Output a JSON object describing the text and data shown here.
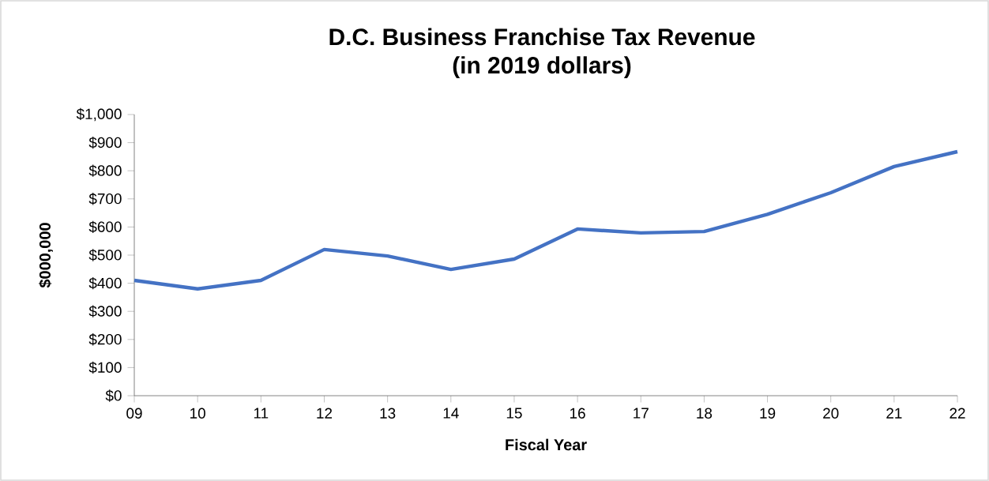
{
  "chart_data": {
    "type": "line",
    "title": "D.C. Business Franchise Tax Revenue\n(in 2019 dollars)",
    "xlabel": "Fiscal Year",
    "ylabel": "$000,000",
    "categories": [
      "09",
      "10",
      "11",
      "12",
      "13",
      "14",
      "15",
      "16",
      "17",
      "18",
      "19",
      "20",
      "21",
      "22"
    ],
    "series": [
      {
        "color": "#4472c4",
        "values": [
          410,
          380,
          410,
          520,
          497,
          449,
          486,
          593,
          579,
          584,
          645,
          722,
          815,
          868
        ]
      }
    ],
    "ylim": [
      0,
      1000
    ],
    "yticks": [
      {
        "value": 0,
        "label": "$0"
      },
      {
        "value": 100,
        "label": "$100"
      },
      {
        "value": 200,
        "label": "$200"
      },
      {
        "value": 300,
        "label": "$300"
      },
      {
        "value": 400,
        "label": "$400"
      },
      {
        "value": 500,
        "label": "$500"
      },
      {
        "value": 600,
        "label": "$600"
      },
      {
        "value": 700,
        "label": "$700"
      },
      {
        "value": 800,
        "label": "$800"
      },
      {
        "value": 900,
        "label": "$900"
      },
      {
        "value": 1000,
        "label": "$1,000"
      }
    ],
    "marker": "none",
    "line_style": "solid"
  }
}
